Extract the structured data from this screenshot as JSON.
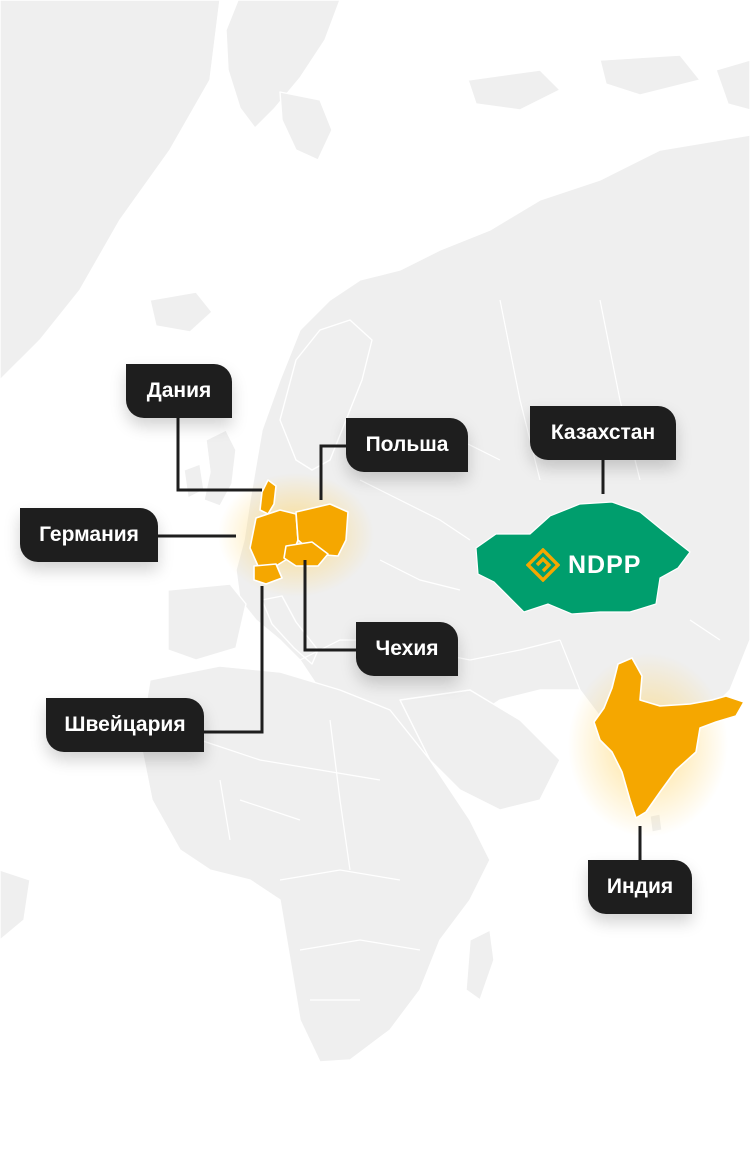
{
  "countries": {
    "denmark": "Дания",
    "poland": "Польша",
    "kazakhstan": "Казахстан",
    "germany": "Германия",
    "czechia": "Чехия",
    "switzerland": "Швейцария",
    "india": "Индия"
  },
  "brand": {
    "name": "NDPP"
  },
  "colors": {
    "land": "#efefef",
    "highlight": "#f5a700",
    "kazakhstan": "#009e6d",
    "label_bg": "#1e1e1e",
    "label_text": "#ffffff"
  }
}
